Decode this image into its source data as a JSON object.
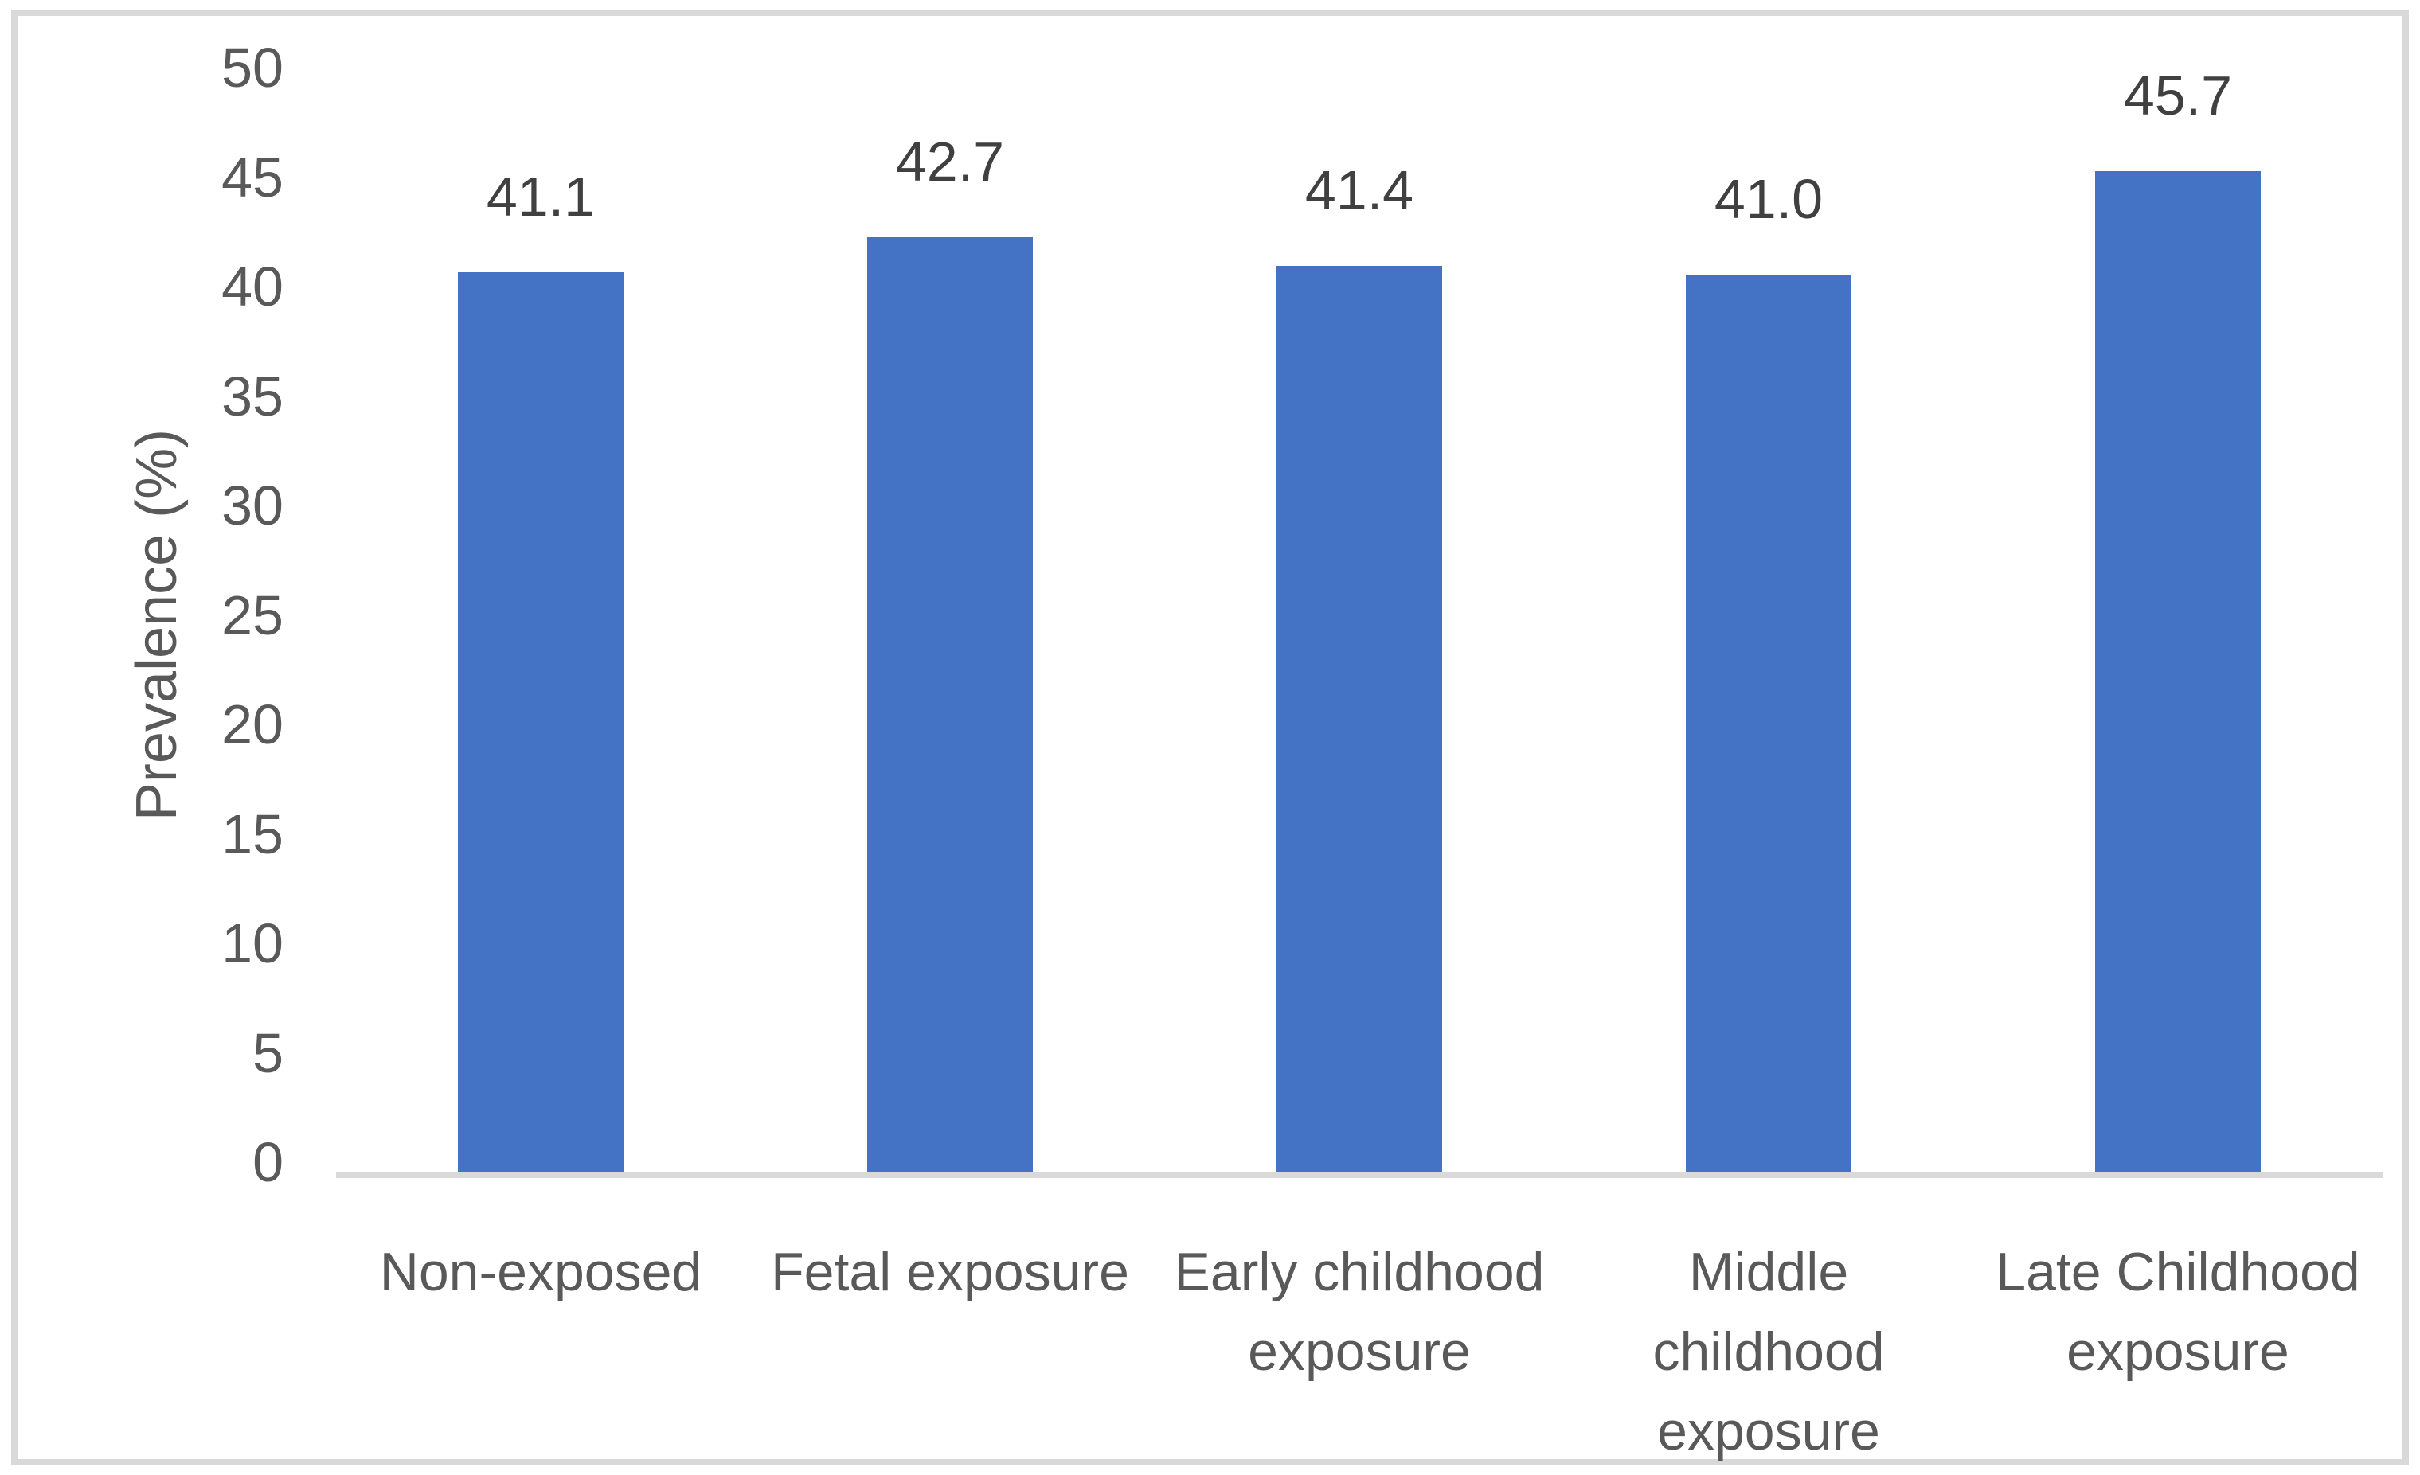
{
  "chart_data": {
    "type": "bar",
    "categories": [
      "Non-exposed",
      "Fetal exposure",
      "Early childhood exposure",
      "Middle childhood exposure",
      "Late Childhood exposure"
    ],
    "category_lines": [
      [
        "Non-exposed"
      ],
      [
        "Fetal exposure"
      ],
      [
        "Early childhood",
        "exposure"
      ],
      [
        "Middle",
        "childhood",
        "exposure"
      ],
      [
        "Late Childhood",
        "exposure"
      ]
    ],
    "values": [
      41.1,
      42.7,
      41.4,
      41.0,
      45.7
    ],
    "data_labels": [
      "41.1",
      "42.7",
      "41.4",
      "41.0",
      "45.7"
    ],
    "title": "",
    "xlabel": "",
    "ylabel": "Prevalence (%)",
    "ylim": [
      0,
      50
    ],
    "ytick_step": 5,
    "ytick_labels": [
      "0",
      "5",
      "10",
      "15",
      "20",
      "25",
      "30",
      "35",
      "40",
      "45",
      "50"
    ],
    "grid": false,
    "legend": "none",
    "colors": {
      "bar": "#4472C4",
      "axis_line": "#D9D9D9",
      "frame_border": "#D9D9D9",
      "data_label": "#404040",
      "tick_label": "#595959",
      "category_label": "#595959",
      "background": "#FFFFFF"
    }
  }
}
